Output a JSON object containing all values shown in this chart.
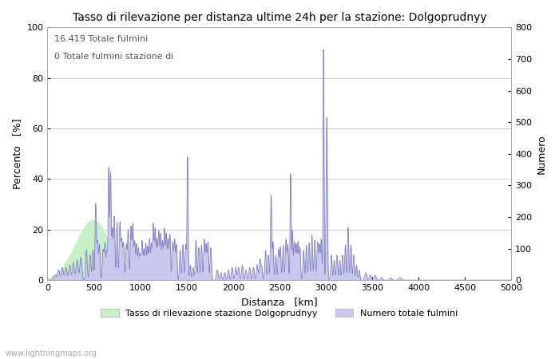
{
  "title": "Tasso di rilevazione per distanza ultime 24h per la stazione: Dolgoprudnyy",
  "xlabel": "Distanza   [km]",
  "ylabel_left": "Percento   [%]",
  "ylabel_right": "Numero",
  "annotation_line1": "16.419 Totale fulmini",
  "annotation_line2": "0 Totale fulmini stazione di",
  "xlim": [
    0,
    5000
  ],
  "ylim_left": [
    0,
    100
  ],
  "ylim_right": [
    0,
    800
  ],
  "xticks": [
    0,
    500,
    1000,
    1500,
    2000,
    2500,
    3000,
    3500,
    4000,
    4500,
    5000
  ],
  "yticks_left": [
    0,
    20,
    40,
    60,
    80,
    100
  ],
  "yticks_right": [
    0,
    100,
    200,
    300,
    400,
    500,
    600,
    700,
    800
  ],
  "legend_labels": [
    "Tasso di rilevazione stazione Dolgoprudnyy",
    "Numero totale fulmini"
  ],
  "legend_colors": [
    "#c8f0c8",
    "#c8c8f0"
  ],
  "line_color": "#8080c0",
  "fill_color_blue": "#c8c8f0",
  "fill_color_green": "#c8f0c8",
  "bg_color": "#ffffff",
  "grid_color": "#cccccc",
  "watermark": "www.lightningmaps.org",
  "title_fontsize": 10,
  "axis_fontsize": 9,
  "tick_fontsize": 8
}
